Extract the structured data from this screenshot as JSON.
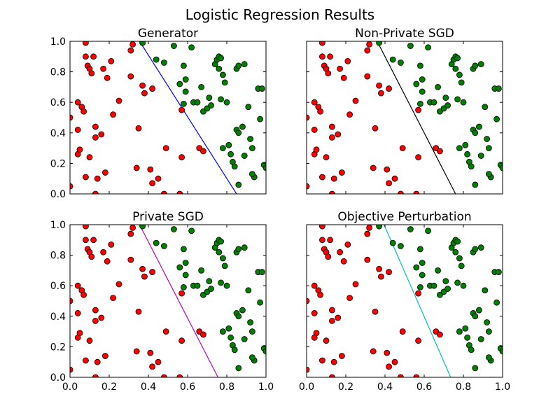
{
  "figure": {
    "title": "Logistic Regression Results"
  },
  "colors": {
    "negative_class": "#ff0000",
    "positive_class": "#008000"
  },
  "chart_data": [
    {
      "type": "scatter",
      "title": "Generator",
      "line_color": "#0000ff",
      "xlim": [
        0,
        1
      ],
      "ylim": [
        0,
        1
      ],
      "xticks": [
        "0.0",
        "0.2",
        "0.4",
        "0.6",
        "0.8",
        "1.0"
      ],
      "yticks": [
        "0.0",
        "0.2",
        "0.4",
        "0.6",
        "0.8",
        "1.0"
      ],
      "show_xtick_labels": false,
      "show_ytick_labels": true,
      "boundary": [
        [
          0.355,
          1.0
        ],
        [
          0.85,
          0.0
        ]
      ]
    },
    {
      "type": "scatter",
      "title": "Non-Private SGD",
      "line_color": "#000000",
      "xlim": [
        0,
        1
      ],
      "ylim": [
        0,
        1
      ],
      "xticks": [
        "0.0",
        "0.2",
        "0.4",
        "0.6",
        "0.8",
        "1.0"
      ],
      "yticks": [
        "0.0",
        "0.2",
        "0.4",
        "0.6",
        "0.8",
        "1.0"
      ],
      "show_xtick_labels": false,
      "show_ytick_labels": false,
      "boundary": [
        [
          0.36,
          1.0
        ],
        [
          0.76,
          0.0
        ]
      ]
    },
    {
      "type": "scatter",
      "title": "Private SGD",
      "line_color": "#bf00bf",
      "xlim": [
        0,
        1
      ],
      "ylim": [
        0,
        1
      ],
      "xticks": [
        "0.0",
        "0.2",
        "0.4",
        "0.6",
        "0.8",
        "1.0"
      ],
      "yticks": [
        "0.0",
        "0.2",
        "0.4",
        "0.6",
        "0.8",
        "1.0"
      ],
      "show_xtick_labels": true,
      "show_ytick_labels": true,
      "boundary": [
        [
          0.355,
          1.0
        ],
        [
          0.755,
          0.0
        ]
      ]
    },
    {
      "type": "scatter",
      "title": "Objective Perturbation",
      "line_color": "#00bfbf",
      "xlim": [
        0,
        1
      ],
      "ylim": [
        0,
        1
      ],
      "xticks": [
        "0.0",
        "0.2",
        "0.4",
        "0.6",
        "0.8",
        "1.0"
      ],
      "yticks": [
        "0.0",
        "0.2",
        "0.4",
        "0.6",
        "0.8",
        "1.0"
      ],
      "show_xtick_labels": true,
      "show_ytick_labels": false,
      "boundary": [
        [
          0.395,
          1.0
        ],
        [
          0.735,
          0.0
        ]
      ]
    }
  ],
  "points": {
    "negative": [
      [
        0.0,
        0.5
      ],
      [
        0.0,
        0.05
      ],
      [
        0.04,
        0.26
      ],
      [
        0.05,
        0.29
      ],
      [
        0.04,
        0.42
      ],
      [
        0.04,
        0.6
      ],
      [
        0.06,
        0.57
      ],
      [
        0.07,
        0.54
      ],
      [
        0.08,
        0.99
      ],
      [
        0.08,
        0.9
      ],
      [
        0.09,
        0.84
      ],
      [
        0.1,
        0.82
      ],
      [
        0.11,
        0.79
      ],
      [
        0.12,
        0.9
      ],
      [
        0.08,
        0.11
      ],
      [
        0.1,
        0.24
      ],
      [
        0.13,
        0.44
      ],
      [
        0.13,
        0.37
      ],
      [
        0.14,
        0.1
      ],
      [
        0.16,
        0.39
      ],
      [
        0.17,
        0.82
      ],
      [
        0.18,
        0.14
      ],
      [
        0.19,
        0.76
      ],
      [
        0.21,
        0.87
      ],
      [
        0.22,
        0.52
      ],
      [
        0.25,
        0.61
      ],
      [
        0.31,
        0.94
      ],
      [
        0.32,
        0.98
      ],
      [
        0.31,
        0.77
      ],
      [
        0.35,
        0.43
      ],
      [
        0.34,
        0.17
      ],
      [
        0.37,
        0.71
      ],
      [
        0.38,
        0.66
      ],
      [
        0.42,
        0.69
      ],
      [
        0.41,
        0.16
      ],
      [
        0.42,
        0.07
      ],
      [
        0.45,
        0.1
      ],
      [
        0.48,
        0.0
      ],
      [
        0.49,
        0.3
      ],
      [
        0.56,
        0.0
      ],
      [
        0.57,
        0.24
      ],
      [
        0.57,
        0.55
      ],
      [
        0.66,
        0.3
      ],
      [
        0.68,
        0.28
      ],
      [
        0.13,
        0.0
      ]
    ],
    "positive": [
      [
        0.37,
        0.99
      ],
      [
        0.44,
        0.88
      ],
      [
        0.48,
        0.86
      ],
      [
        0.53,
        0.97
      ],
      [
        0.56,
        0.72
      ],
      [
        0.58,
        0.84
      ],
      [
        0.58,
        0.59
      ],
      [
        0.59,
        0.67
      ],
      [
        0.59,
        0.75
      ],
      [
        0.62,
        0.96
      ],
      [
        0.63,
        0.6
      ],
      [
        0.65,
        0.6
      ],
      [
        0.67,
        0.7
      ],
      [
        0.68,
        0.54
      ],
      [
        0.7,
        0.56
      ],
      [
        0.71,
        0.63
      ],
      [
        0.72,
        0.58
      ],
      [
        0.74,
        0.85
      ],
      [
        0.75,
        0.88
      ],
      [
        0.76,
        0.9
      ],
      [
        0.76,
        0.82
      ],
      [
        0.77,
        0.89
      ],
      [
        0.77,
        0.62
      ],
      [
        0.78,
        0.3
      ],
      [
        0.78,
        0.78
      ],
      [
        0.79,
        0.73
      ],
      [
        0.8,
        0.6
      ],
      [
        0.81,
        0.32
      ],
      [
        0.82,
        0.26
      ],
      [
        0.83,
        0.21
      ],
      [
        0.84,
        0.18
      ],
      [
        0.85,
        0.42
      ],
      [
        0.85,
        0.82
      ],
      [
        0.86,
        0.84
      ],
      [
        0.86,
        0.4
      ],
      [
        0.86,
        0.06
      ],
      [
        0.88,
        0.44
      ],
      [
        0.89,
        0.25
      ],
      [
        0.89,
        0.85
      ],
      [
        0.91,
        0.57
      ],
      [
        0.92,
        0.36
      ],
      [
        0.93,
        0.3
      ],
      [
        0.94,
        0.11
      ],
      [
        0.96,
        0.69
      ],
      [
        0.97,
        0.49
      ],
      [
        0.98,
        0.69
      ],
      [
        0.99,
        0.19
      ],
      [
        1.0,
        0.17
      ],
      [
        0.93,
        0.13
      ]
    ]
  }
}
